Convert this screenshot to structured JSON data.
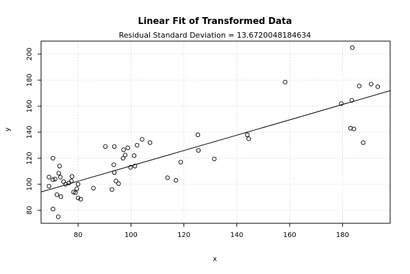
{
  "chart_data": {
    "type": "scatter",
    "title": "Linear Fit of Transformed Data",
    "subtitle_prefix": "Residual Standard Deviation = ",
    "residual_sd": "13.6720048184634",
    "xlabel": "x",
    "ylabel": "y",
    "xlim": [
      66.0,
      198.0
    ],
    "ylim": [
      70.0,
      210.0
    ],
    "xticks": [
      80,
      100,
      120,
      140,
      160,
      180
    ],
    "yticks": [
      80,
      100,
      120,
      140,
      160,
      180,
      200
    ],
    "grid": true,
    "fit_line": {
      "x": [
        66.0,
        198.0
      ],
      "y": [
        94.1,
        171.9
      ]
    },
    "points": [
      {
        "x": 69.0,
        "y": 105.5
      },
      {
        "x": 69.0,
        "y": 98.5
      },
      {
        "x": 70.5,
        "y": 120.0
      },
      {
        "x": 70.5,
        "y": 103.5
      },
      {
        "x": 70.5,
        "y": 81.0
      },
      {
        "x": 71.3,
        "y": 104.0
      },
      {
        "x": 72.0,
        "y": 92.0
      },
      {
        "x": 72.5,
        "y": 75.0
      },
      {
        "x": 72.7,
        "y": 108.5
      },
      {
        "x": 73.0,
        "y": 114.0
      },
      {
        "x": 73.5,
        "y": 90.5
      },
      {
        "x": 73.3,
        "y": 105.5
      },
      {
        "x": 74.5,
        "y": 102.0
      },
      {
        "x": 75.3,
        "y": 100.0
      },
      {
        "x": 76.5,
        "y": 101.0
      },
      {
        "x": 77.5,
        "y": 102.5
      },
      {
        "x": 77.7,
        "y": 106.0
      },
      {
        "x": 78.3,
        "y": 94.0
      },
      {
        "x": 79.0,
        "y": 93.5
      },
      {
        "x": 79.5,
        "y": 96.5
      },
      {
        "x": 80.0,
        "y": 89.5
      },
      {
        "x": 80.0,
        "y": 100.0
      },
      {
        "x": 81.0,
        "y": 88.5
      },
      {
        "x": 85.8,
        "y": 97.0
      },
      {
        "x": 90.3,
        "y": 129.0
      },
      {
        "x": 92.8,
        "y": 96.0
      },
      {
        "x": 93.5,
        "y": 115.0
      },
      {
        "x": 93.7,
        "y": 129.0
      },
      {
        "x": 93.7,
        "y": 109.0
      },
      {
        "x": 94.3,
        "y": 102.5
      },
      {
        "x": 95.3,
        "y": 100.5
      },
      {
        "x": 97.0,
        "y": 120.0
      },
      {
        "x": 97.2,
        "y": 126.5
      },
      {
        "x": 97.8,
        "y": 122.5
      },
      {
        "x": 98.8,
        "y": 128.0
      },
      {
        "x": 99.8,
        "y": 113.0
      },
      {
        "x": 101.2,
        "y": 122.0
      },
      {
        "x": 101.5,
        "y": 114.0
      },
      {
        "x": 102.3,
        "y": 130.0
      },
      {
        "x": 104.2,
        "y": 134.5
      },
      {
        "x": 107.2,
        "y": 132.0
      },
      {
        "x": 113.8,
        "y": 105.0
      },
      {
        "x": 117.0,
        "y": 103.0
      },
      {
        "x": 118.8,
        "y": 117.0
      },
      {
        "x": 125.3,
        "y": 138.0
      },
      {
        "x": 125.5,
        "y": 126.0
      },
      {
        "x": 131.5,
        "y": 119.5
      },
      {
        "x": 144.0,
        "y": 138.0
      },
      {
        "x": 144.5,
        "y": 135.0
      },
      {
        "x": 158.3,
        "y": 178.5
      },
      {
        "x": 179.5,
        "y": 162.0
      },
      {
        "x": 183.0,
        "y": 143.0
      },
      {
        "x": 183.5,
        "y": 164.5
      },
      {
        "x": 183.7,
        "y": 205.0
      },
      {
        "x": 184.3,
        "y": 142.5
      },
      {
        "x": 186.3,
        "y": 175.5
      },
      {
        "x": 187.8,
        "y": 132.0
      },
      {
        "x": 190.8,
        "y": 177.0
      },
      {
        "x": 193.3,
        "y": 175.0
      }
    ]
  }
}
